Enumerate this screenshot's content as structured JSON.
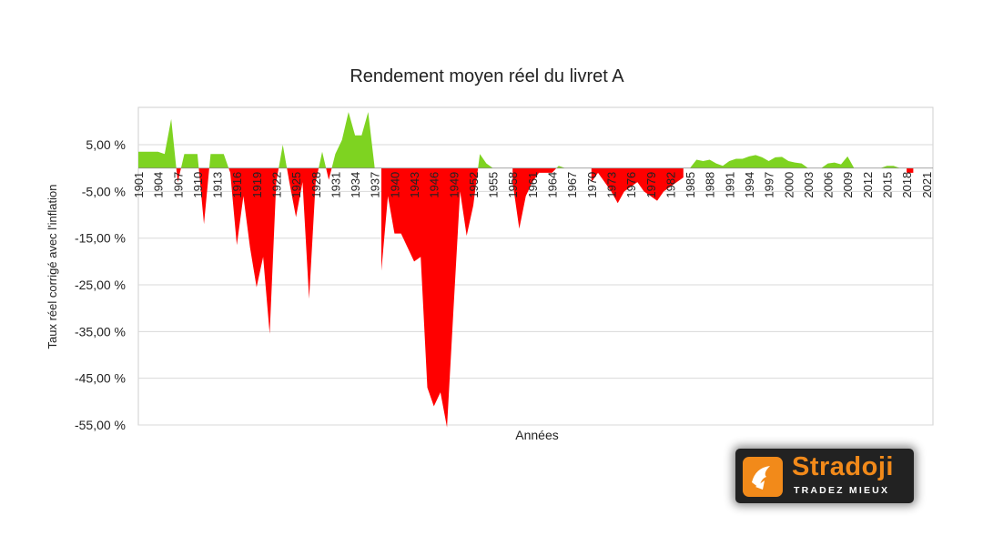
{
  "chart_data": {
    "type": "area",
    "title": "Rendement moyen réel du livret A",
    "xlabel": "Années",
    "ylabel": "Taux réel corrigé avec l'inflation",
    "y_ticks": [
      "5,00 %",
      "-5,00 %",
      "-15,00 %",
      "-25,00 %",
      "-35,00 %",
      "-45,00 %",
      "-55,00 %"
    ],
    "y_tick_values": [
      5,
      -5,
      -15,
      -25,
      -35,
      -45,
      -55
    ],
    "ylim": [
      -55,
      13
    ],
    "x_ticks": [
      "1901",
      "1904",
      "1907",
      "1910",
      "1913",
      "1916",
      "1919",
      "1922",
      "1925",
      "1928",
      "1931",
      "1934",
      "1937",
      "1940",
      "1943",
      "1946",
      "1949",
      "1952",
      "1955",
      "1958",
      "1961",
      "1964",
      "1967",
      "1970",
      "1973",
      "1976",
      "1979",
      "1982",
      "1985",
      "1988",
      "1991",
      "1994",
      "1997",
      "2000",
      "2003",
      "2006",
      "2009",
      "2012",
      "2015",
      "2018",
      "2021"
    ],
    "grid": "horizontal",
    "positive_color": "#7ed321",
    "negative_color": "#ff0000",
    "series": [
      {
        "x": [
          1901,
          1902,
          1903,
          1904,
          1905,
          1906,
          1907,
          1908,
          1909,
          1910,
          1911,
          1912,
          1913,
          1914,
          1915,
          1916,
          1917,
          1918,
          1919,
          1920,
          1921,
          1922,
          1923,
          1924,
          1925,
          1926,
          1927,
          1928,
          1929,
          1930,
          1931,
          1932,
          1933,
          1934,
          1935,
          1936,
          1937,
          1938,
          1939,
          1940,
          1941,
          1942,
          1943,
          1944,
          1945,
          1946,
          1947,
          1948,
          1949,
          1950,
          1951,
          1952,
          1953,
          1954,
          1955,
          1956,
          1957,
          1958,
          1959,
          1960,
          1961,
          1962,
          1963,
          1964,
          1965,
          1966,
          1967,
          1968,
          1969,
          1970,
          1971,
          1972,
          1973,
          1974,
          1975,
          1976,
          1977,
          1978,
          1979,
          1980,
          1981,
          1982,
          1983,
          1984,
          1985,
          1986,
          1987,
          1988,
          1989,
          1990,
          1991,
          1992,
          1993,
          1994,
          1995,
          1996,
          1997,
          1998,
          1999,
          2000,
          2001,
          2002,
          2003,
          2004,
          2005,
          2006,
          2007,
          2008,
          2009,
          2010,
          2011,
          2012,
          2013,
          2014,
          2015,
          2016,
          2017,
          2018,
          2019,
          2020,
          2021,
          2022
        ],
        "values": [
          3.5,
          3.5,
          3.5,
          3.5,
          3,
          10.5,
          -3,
          3,
          3,
          3,
          -12,
          3,
          3,
          3,
          -1,
          -16.5,
          -6,
          -17,
          -25.5,
          -19,
          -35.5,
          -3,
          5,
          -3,
          -10.5,
          -3,
          -28,
          -3,
          3.5,
          -2.5,
          3,
          6,
          12,
          7,
          7,
          12,
          0,
          -22,
          -6,
          -14,
          -14,
          -17,
          -20,
          -19,
          -47,
          -51,
          -48,
          -55.5,
          -30,
          -5,
          -14.5,
          -8,
          3,
          1,
          0,
          0,
          0,
          -3,
          -13,
          -6,
          -3,
          -1,
          -1,
          -1,
          0.5,
          0,
          0,
          0,
          0,
          -3,
          -1,
          -3,
          -5,
          -7.5,
          -5,
          -4,
          -3,
          -5,
          -6,
          -7,
          -5,
          -4,
          -3,
          -2,
          0,
          1.8,
          1.5,
          1.8,
          1,
          0.5,
          1.5,
          2,
          2,
          2.5,
          2.8,
          2.3,
          1.5,
          2.3,
          2.4,
          1.5,
          1.2,
          1,
          0,
          0,
          0,
          1,
          1.2,
          0.8,
          2.5,
          0,
          0,
          0,
          0,
          0,
          0.5,
          0.5,
          0,
          -1,
          -1,
          0,
          0,
          -3
        ]
      }
    ]
  },
  "logo": {
    "name": "Stradoji",
    "tagline": "TRADEZ MIEUX"
  }
}
